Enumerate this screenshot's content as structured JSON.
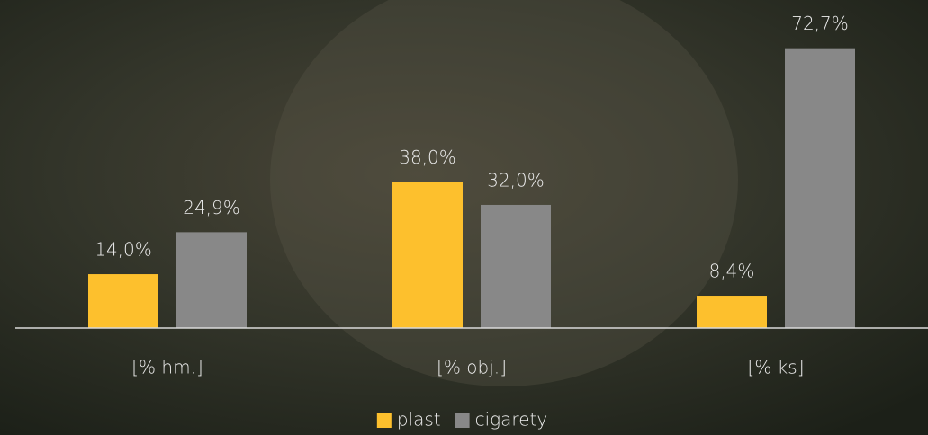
{
  "chart_data": {
    "type": "bar",
    "categories": [
      "[% hm.]",
      "[% obj.]",
      "[% ks]"
    ],
    "series": [
      {
        "name": "plast",
        "color": "#fdc02d",
        "values": [
          14.0,
          38.0,
          8.4
        ],
        "value_labels": [
          "14,0%",
          "38,0%",
          "8,4%"
        ]
      },
      {
        "name": "cigarety",
        "color": "#888888",
        "values": [
          24.9,
          32.0,
          72.7
        ],
        "value_labels": [
          "24,9%",
          "32,0%",
          "72,7%"
        ]
      }
    ],
    "ylim": [
      0,
      85
    ],
    "legend": "bottom"
  }
}
